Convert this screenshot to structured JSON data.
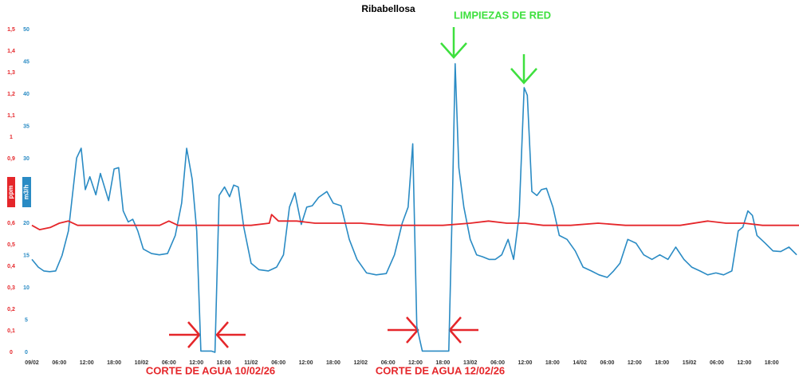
{
  "chart_data": {
    "type": "line",
    "title": "Ribabellosa",
    "y_label": "ppm",
    "y2_label": "m3/h",
    "annotations": {
      "cleaning": "LIMPIEZAS DE RED",
      "cut1": "CORTE DE AGUA 10/02/26",
      "cut2": "CORTE DE AGUA 12/02/26"
    },
    "xlim": [
      0,
      168
    ],
    "xticks": [
      {
        "value": 0,
        "label": "09/02"
      },
      {
        "value": 6,
        "label": "06:00"
      },
      {
        "value": 12,
        "label": "12:00"
      },
      {
        "value": 18,
        "label": "18:00"
      },
      {
        "value": 24,
        "label": "10/02"
      },
      {
        "value": 30,
        "label": "06:00"
      },
      {
        "value": 36,
        "label": "12:00"
      },
      {
        "value": 42,
        "label": "18:00"
      },
      {
        "value": 48,
        "label": "11/02"
      },
      {
        "value": 54,
        "label": "06:00"
      },
      {
        "value": 60,
        "label": "12:00"
      },
      {
        "value": 66,
        "label": "18:00"
      },
      {
        "value": 72,
        "label": "12/02"
      },
      {
        "value": 78,
        "label": "06:00"
      },
      {
        "value": 84,
        "label": "12:00"
      },
      {
        "value": 90,
        "label": "18:00"
      },
      {
        "value": 96,
        "label": "13/02"
      },
      {
        "value": 102,
        "label": "06:00"
      },
      {
        "value": 108,
        "label": "12:00"
      },
      {
        "value": 114,
        "label": "18:00"
      },
      {
        "value": 120,
        "label": "14/02"
      },
      {
        "value": 126,
        "label": "06:00"
      },
      {
        "value": 132,
        "label": "12:00"
      },
      {
        "value": 138,
        "label": "18:00"
      },
      {
        "value": 144,
        "label": "15/02"
      },
      {
        "value": 150,
        "label": "06:00"
      },
      {
        "value": 156,
        "label": "12:00"
      },
      {
        "value": 162,
        "label": "18:00"
      }
    ],
    "ylim": [
      0,
      1.5
    ],
    "yticks": [
      0,
      {
        "value": 0.1,
        "label": "0,1"
      },
      {
        "value": 0.2,
        "label": "0,2"
      },
      {
        "value": 0.3,
        "label": "0,3"
      },
      {
        "value": 0.4,
        "label": "0,4"
      },
      {
        "value": 0.5,
        "label": "0,5"
      },
      {
        "value": 0.6,
        "label": "0,6"
      },
      {
        "value": 0.9,
        "label": "0,9"
      },
      1,
      {
        "value": 1.1,
        "label": "1,1"
      },
      {
        "value": 1.2,
        "label": "1,2"
      },
      {
        "value": 1.3,
        "label": "1,3"
      },
      {
        "value": 1.4,
        "label": "1,4"
      },
      {
        "value": 1.5,
        "label": "1,5"
      }
    ],
    "y2lim": [
      0,
      50
    ],
    "y2ticks": [
      0,
      5,
      10,
      15,
      20,
      30,
      35,
      40,
      45,
      50
    ],
    "series": [
      {
        "name": "m3/h",
        "color": "#2a8bc4",
        "axis": "y2",
        "x": [
          0,
          1.4,
          2.6,
          3.9,
          5.2,
          6.6,
          8,
          9.8,
          10.8,
          11.7,
          12.7,
          14,
          15,
          16.8,
          18,
          19,
          20,
          21.1,
          22.1,
          23.2,
          24.4,
          26.2,
          27.9,
          29.7,
          31.4,
          32.8,
          33.9,
          35.1,
          36.1,
          37,
          39.3,
          40.1,
          41,
          42.2,
          43.3,
          44.2,
          45.2,
          46.4,
          48,
          49.7,
          51.8,
          53.6,
          55.1,
          56.4,
          57.6,
          59,
          60.2,
          61.4,
          62.8,
          64.6,
          66,
          67.7,
          69.5,
          71.2,
          73.3,
          75.4,
          77.6,
          79.4,
          81.1,
          82.4,
          83.4,
          84.3,
          85.5,
          91.3,
          92.1,
          92.7,
          93.5,
          94.6,
          96,
          97.4,
          98.7,
          100.1,
          101.5,
          102.9,
          104.3,
          105.5,
          106.7,
          107.8,
          108.5,
          109.5,
          110.6,
          111.6,
          112.7,
          114.1,
          115.5,
          117.2,
          119,
          120.7,
          122.5,
          124.2,
          126,
          127.4,
          128.8,
          130.5,
          132.3,
          134,
          135.8,
          137.5,
          139.3,
          141,
          142.8,
          144.5,
          146.3,
          148,
          149.8,
          151.5,
          153.3,
          154.7,
          155.7,
          156.8,
          157.8,
          158.8,
          160.6,
          162.3,
          164,
          165.8,
          167.5
        ],
        "values": [
          14.4,
          13.2,
          12.6,
          12.5,
          12.6,
          15,
          18.8,
          30.1,
          31.6,
          25.2,
          27.2,
          24.4,
          27.7,
          23.5,
          28.4,
          28.6,
          21.9,
          20.2,
          20.6,
          18.8,
          16,
          15.3,
          15.1,
          15.3,
          18.1,
          23.1,
          31.6,
          26.8,
          18.8,
          0.2,
          0.2,
          0,
          24.3,
          25.6,
          24.1,
          25.9,
          25.6,
          19.4,
          13.8,
          12.8,
          12.6,
          13.2,
          15.1,
          22.5,
          24.7,
          19.8,
          22.5,
          22.7,
          24,
          24.9,
          23.1,
          22.7,
          17.5,
          14.4,
          12.3,
          12,
          12.2,
          15.1,
          20,
          22.5,
          32.3,
          4,
          0.2,
          0.2,
          23.7,
          44.7,
          28.6,
          22.5,
          17.5,
          15.1,
          14.8,
          14.4,
          14.4,
          15.1,
          17.5,
          14.4,
          21.2,
          41,
          39.8,
          24.9,
          24.3,
          25.2,
          25.4,
          22.5,
          18.1,
          17.5,
          15.7,
          13.2,
          12.6,
          12,
          11.6,
          12.6,
          13.8,
          17.5,
          16.9,
          15.1,
          14.4,
          15.1,
          14.4,
          16.3,
          14.4,
          13.2,
          12.6,
          12,
          12.3,
          12,
          12.6,
          18.8,
          19.4,
          21.9,
          21.2,
          18.1,
          16.9,
          15.7,
          15.6,
          16.3,
          15.1
        ]
      },
      {
        "name": "ppm",
        "color": "#e5262a",
        "axis": "y",
        "x": [
          0,
          1.7,
          4,
          6,
          8,
          10,
          13,
          16,
          20,
          24,
          28,
          30,
          32,
          36,
          42,
          48,
          52,
          52.5,
          54,
          58,
          62,
          66,
          72,
          78,
          84,
          90,
          96,
          100,
          104,
          108,
          112,
          118,
          124,
          130,
          136,
          142,
          148,
          152,
          156,
          160,
          168
        ],
        "values": [
          0.59,
          0.57,
          0.58,
          0.6,
          0.61,
          0.59,
          0.59,
          0.59,
          0.59,
          0.59,
          0.59,
          0.61,
          0.59,
          0.59,
          0.59,
          0.59,
          0.6,
          0.64,
          0.61,
          0.61,
          0.6,
          0.6,
          0.6,
          0.59,
          0.59,
          0.59,
          0.6,
          0.61,
          0.6,
          0.6,
          0.59,
          0.59,
          0.6,
          0.59,
          0.59,
          0.59,
          0.61,
          0.6,
          0.6,
          0.59,
          0.59
        ]
      }
    ]
  }
}
